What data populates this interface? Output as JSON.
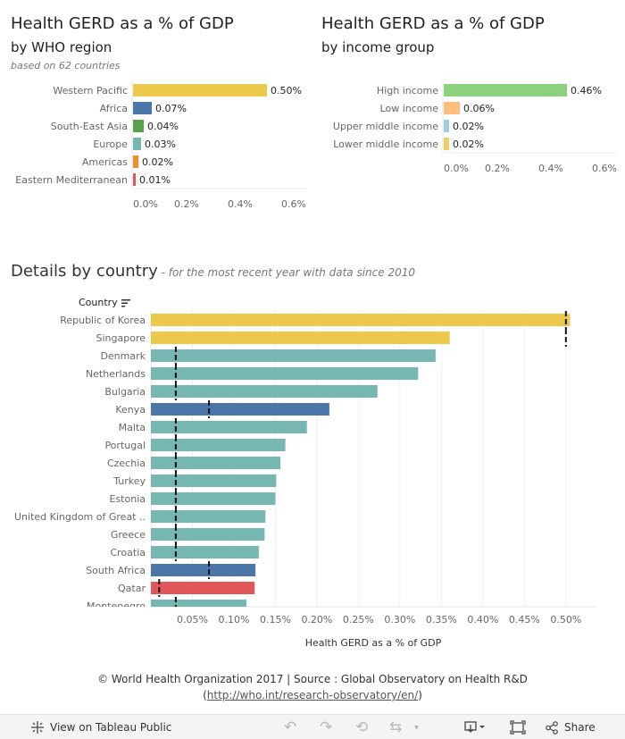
{
  "region_panel": {
    "title": "Health GERD as a % of GDP",
    "subtitle": "by WHO region",
    "note": "based on 62 countries"
  },
  "income_panel": {
    "title": "Health GERD as a % of GDP",
    "subtitle": "by income group"
  },
  "details": {
    "title": "Details by country",
    "subtitle": " - for the most recent year with data since 2010",
    "column_header": "Country"
  },
  "footer": {
    "line1": "© World Health Organization 2017 | Source : Global Observatory on Health R&D",
    "open_paren": "(",
    "link": "http://who.int/research-observatory/en/",
    "close_paren": ")"
  },
  "toolbar": {
    "view_label": "View on Tableau Public",
    "share_label": "Share"
  },
  "chart_data": [
    {
      "type": "bar",
      "orientation": "horizontal",
      "categories": [
        "Western Pacific",
        "Africa",
        "South-East Asia",
        "Europe",
        "Americas",
        "Eastern Mediterranean"
      ],
      "values": [
        0.5,
        0.07,
        0.04,
        0.03,
        0.02,
        0.01
      ],
      "data_labels": [
        "0.50%",
        "0.07%",
        "0.04%",
        "0.03%",
        "0.02%",
        "0.01%"
      ],
      "colors": [
        "#ecc94b",
        "#4a76a8",
        "#59a14f",
        "#76b7b2",
        "#f28e2b",
        "#e15759"
      ],
      "xlim": [
        0,
        0.65
      ],
      "xticks": [
        0,
        0.2,
        0.4,
        0.6
      ],
      "xtick_labels": [
        "0.0%",
        "0.2%",
        "0.4%",
        "0.6%"
      ],
      "grid": false
    },
    {
      "type": "bar",
      "orientation": "horizontal",
      "categories": [
        "High income",
        "Low income",
        "Upper middle income",
        "Lower middle income"
      ],
      "values": [
        0.46,
        0.06,
        0.02,
        0.02
      ],
      "data_labels": [
        "0.46%",
        "0.06%",
        "0.02%",
        "0.02%"
      ],
      "colors": [
        "#8cd17d",
        "#ffbe7d",
        "#a0cbe8",
        "#f1ce63"
      ],
      "xlim": [
        0,
        0.65
      ],
      "xticks": [
        0,
        0.2,
        0.4,
        0.6
      ],
      "xtick_labels": [
        "0.0%",
        "0.2%",
        "0.4%",
        "0.6%"
      ],
      "grid": false
    },
    {
      "type": "bar",
      "orientation": "horizontal",
      "xlabel": "Health GERD as a % of GDP",
      "categories": [
        "Republic of Korea",
        "Singapore",
        "Denmark",
        "Netherlands",
        "Bulgaria",
        "Kenya",
        "Malta",
        "Portugal",
        "Czechia",
        "Turkey",
        "Estonia",
        "United Kingdom of Great ..",
        "Greece",
        "Croatia",
        "South Africa",
        "Qatar",
        "Montenegro"
      ],
      "values": [
        0.505,
        0.36,
        0.343,
        0.322,
        0.273,
        0.215,
        0.188,
        0.162,
        0.156,
        0.151,
        0.15,
        0.138,
        0.137,
        0.13,
        0.126,
        0.125,
        0.115
      ],
      "reference_values": [
        0.5,
        0.5,
        0.03,
        0.03,
        0.03,
        0.07,
        0.03,
        0.03,
        0.03,
        0.03,
        0.03,
        0.03,
        0.03,
        0.03,
        0.07,
        0.01,
        0.03
      ],
      "colors": [
        "#ecc94b",
        "#ecc94b",
        "#76b7b2",
        "#76b7b2",
        "#76b7b2",
        "#4a76a8",
        "#76b7b2",
        "#76b7b2",
        "#76b7b2",
        "#76b7b2",
        "#76b7b2",
        "#76b7b2",
        "#76b7b2",
        "#76b7b2",
        "#4a76a8",
        "#e15759",
        "#76b7b2"
      ],
      "xlim": [
        0,
        0.54
      ],
      "xticks": [
        0.05,
        0.1,
        0.15,
        0.2,
        0.25,
        0.3,
        0.35,
        0.4,
        0.45,
        0.5
      ],
      "xtick_labels": [
        "0.05%",
        "0.10%",
        "0.15%",
        "0.20%",
        "0.25%",
        "0.30%",
        "0.35%",
        "0.40%",
        "0.45%",
        "0.50%"
      ],
      "grid": true
    }
  ]
}
